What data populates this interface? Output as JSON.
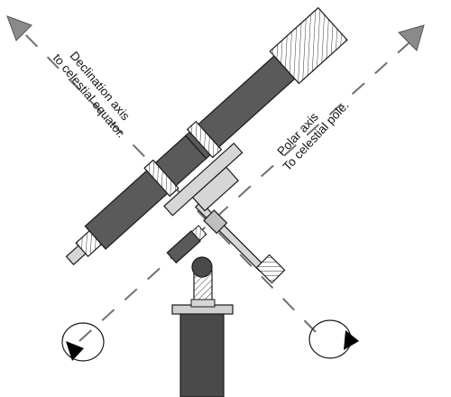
{
  "labels": {
    "declination_line1": "Declination axis",
    "declination_line2": "to celestial equator.",
    "polar_line1": "Polar axis",
    "polar_line2": "To celestial pole."
  },
  "colors": {
    "background": "#ffffff",
    "outline": "#1a1a1a",
    "tube_dark": "#5a5a5a",
    "pier": "#4a4a4a",
    "parts_light": "#cfcfcf",
    "axis_dash": "#707070",
    "arrow_head": "#8a8a8a",
    "rotation_arrow": "#000000"
  },
  "icons": {
    "declination_arrow": "arrow-up-left-icon",
    "polar_arrow": "arrow-up-right-icon",
    "left_rotation": "rotation-ellipse-icon",
    "right_rotation": "rotation-ellipse-icon"
  }
}
